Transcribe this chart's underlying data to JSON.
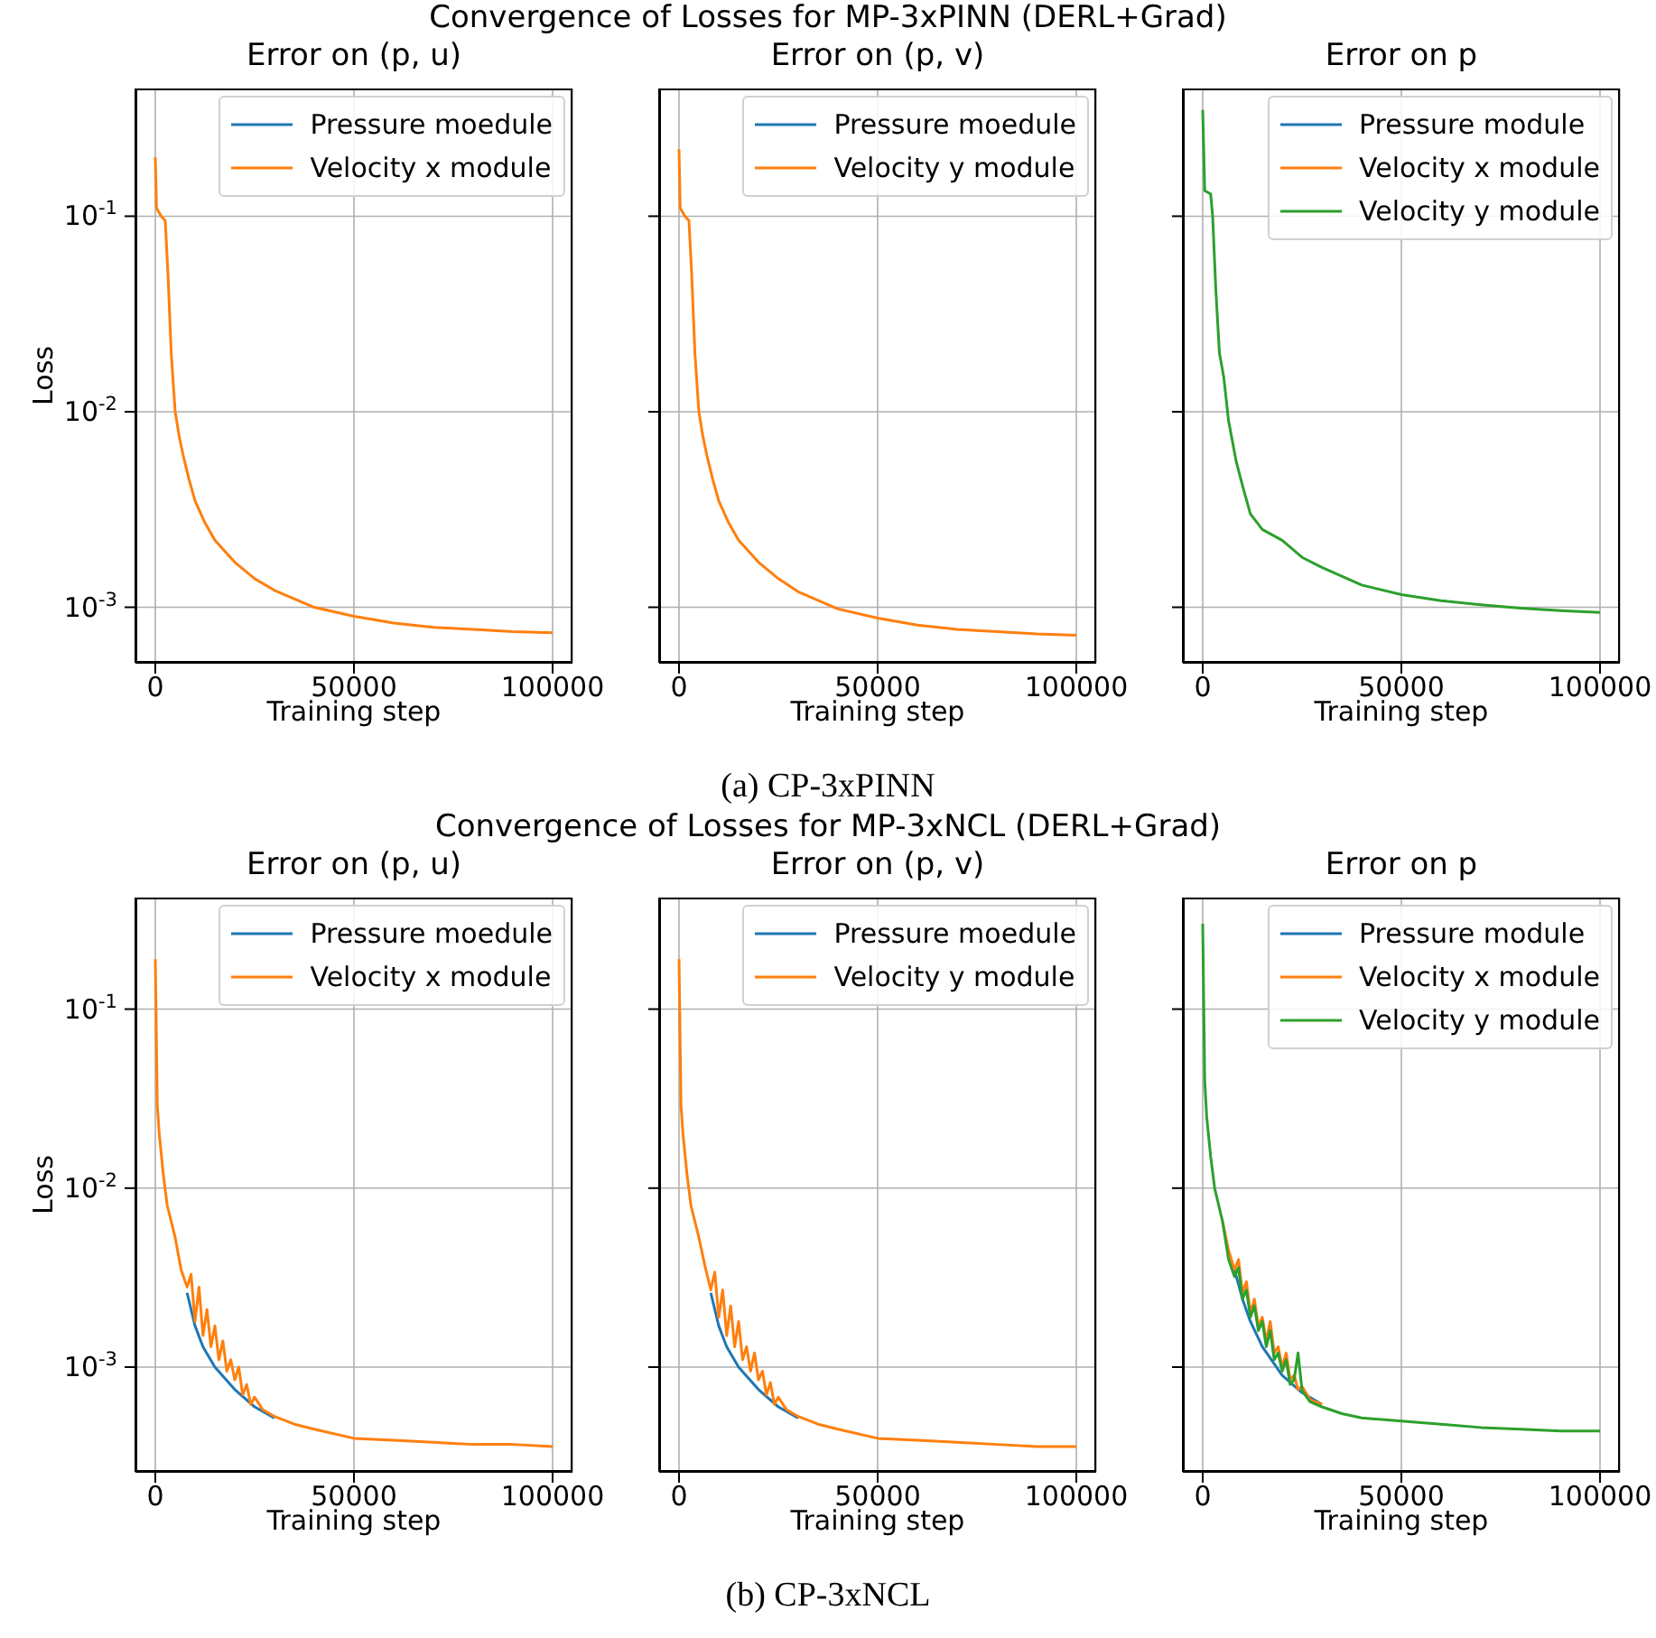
{
  "chart_data": [
    {
      "type": "line",
      "title": "Error on (p, u)",
      "xlabel": "Training step",
      "ylabel": "Loss",
      "annotations": [
        "Convergence of Losses for MP-3xPINN (DERL+Grad)",
        "(a) CP-3xPINN"
      ],
      "log": "y",
      "grid": true,
      "legend": "top right",
      "xlim": [
        -5000,
        105000
      ],
      "xticks": [
        0,
        50000,
        100000
      ],
      "ylim": [
        0.00052,
        0.45
      ],
      "yticks": [
        {
          "value": 0.001,
          "label": "10$^{-3}$"
        },
        {
          "value": 0.01,
          "label": "10$^{-2}$"
        },
        {
          "value": 0.1,
          "label": "10$^{-1}$"
        }
      ],
      "series": [
        {
          "name": "Pressure moedule",
          "color": "#1f77b4"
        },
        {
          "name": "Velocity x module",
          "color": "#ff7f0e",
          "x": [
            0,
            300,
            1500,
            2500,
            3200,
            4000,
            5000,
            6000,
            7000,
            8500,
            10000,
            12500,
            15000,
            20000,
            25000,
            30000,
            40000,
            50000,
            60000,
            70000,
            80000,
            90000,
            100000
          ],
          "values": [
            0.2,
            0.11,
            0.1,
            0.095,
            0.05,
            0.02,
            0.01,
            0.0075,
            0.006,
            0.0045,
            0.0035,
            0.0027,
            0.0022,
            0.0017,
            0.0014,
            0.00122,
            0.001,
            0.0009,
            0.00083,
            0.00079,
            0.00077,
            0.00075,
            0.00074
          ]
        }
      ]
    },
    {
      "type": "line",
      "title": "Error on (p, v)",
      "xlabel": "Training step",
      "log": "y",
      "grid": true,
      "legend": "top right",
      "tick_labels": "x",
      "xlim": [
        -5000,
        105000
      ],
      "xticks": [
        0,
        50000,
        100000
      ],
      "ylim": [
        0.00052,
        0.45
      ],
      "yticks": [
        {
          "value": 0.001,
          "label": null
        },
        {
          "value": 0.01,
          "label": null
        },
        {
          "value": 0.1,
          "label": null
        }
      ],
      "series": [
        {
          "name": "Pressure moedule",
          "color": "#1f77b4"
        },
        {
          "name": "Velocity y module",
          "color": "#ff7f0e",
          "x": [
            0,
            300,
            1500,
            2500,
            3200,
            4000,
            5000,
            6000,
            7000,
            8500,
            10000,
            12500,
            15000,
            20000,
            25000,
            30000,
            40000,
            50000,
            60000,
            70000,
            80000,
            90000,
            100000
          ],
          "values": [
            0.22,
            0.11,
            0.1,
            0.095,
            0.05,
            0.02,
            0.01,
            0.0075,
            0.006,
            0.0045,
            0.0035,
            0.0027,
            0.0022,
            0.0017,
            0.0014,
            0.0012,
            0.00098,
            0.00088,
            0.00081,
            0.00077,
            0.00075,
            0.00073,
            0.00072
          ]
        }
      ]
    },
    {
      "type": "line",
      "title": "Error on p",
      "xlabel": "Training step",
      "log": "y",
      "grid": true,
      "legend": "top right",
      "tick_labels": "x",
      "xlim": [
        -5000,
        105000
      ],
      "xticks": [
        0,
        50000,
        100000
      ],
      "ylim": [
        0.00052,
        0.45
      ],
      "yticks": [
        {
          "value": 0.001,
          "label": null
        },
        {
          "value": 0.01,
          "label": null
        },
        {
          "value": 0.1,
          "label": null
        }
      ],
      "series": [
        {
          "name": "Pressure module",
          "color": "#1f77b4"
        },
        {
          "name": "Velocity x module",
          "color": "#ff7f0e"
        },
        {
          "name": "Velocity y module",
          "color": "#2ca02c",
          "x": [
            0,
            500,
            2000,
            2500,
            3300,
            4200,
            5300,
            6500,
            8400,
            10000,
            12000,
            15000,
            20000,
            25000,
            30000,
            40000,
            50000,
            60000,
            70000,
            80000,
            90000,
            100000
          ],
          "values": [
            0.35,
            0.135,
            0.13,
            0.1,
            0.042,
            0.02,
            0.015,
            0.009,
            0.0056,
            0.0042,
            0.003,
            0.0025,
            0.0022,
            0.0018,
            0.0016,
            0.0013,
            0.00116,
            0.00108,
            0.00103,
            0.00099,
            0.00096,
            0.00094
          ]
        }
      ]
    },
    {
      "type": "line",
      "title": "Error on (p, u)",
      "xlabel": "Training step",
      "ylabel": "Loss",
      "annotations": [
        "Convergence of Losses for MP-3xNCL (DERL+Grad)",
        "(b) CP-3xNCL"
      ],
      "log": "y",
      "grid": true,
      "legend": "top right",
      "xlim": [
        -5000,
        105000
      ],
      "xticks": [
        0,
        50000,
        100000
      ],
      "ylim": [
        0.00026,
        0.42
      ],
      "yticks": [
        {
          "value": 0.001,
          "label": "10$^{-3}$"
        },
        {
          "value": 0.01,
          "label": "10$^{-2}$"
        },
        {
          "value": 0.1,
          "label": "10$^{-1}$"
        }
      ],
      "series": [
        {
          "name": "Pressure moedule",
          "color": "#1f77b4",
          "x": [
            8000,
            10000,
            12000,
            15000,
            20000,
            25000,
            30000
          ],
          "values": [
            0.0026,
            0.0017,
            0.0013,
            0.001,
            0.00075,
            0.0006,
            0.00052
          ]
        },
        {
          "name": "Velocity x module",
          "color": "#ff7f0e",
          "x": [
            0,
            500,
            1000,
            2000,
            3000,
            5000,
            6500,
            8000,
            9000,
            10000,
            11000,
            12000,
            13000,
            14000,
            15000,
            16000,
            17000,
            18000,
            19000,
            20000,
            21000,
            22000,
            23000,
            24000,
            25000,
            27000,
            30000,
            35000,
            40000,
            50000,
            60000,
            70000,
            80000,
            90000,
            100000
          ],
          "values": [
            0.19,
            0.029,
            0.02,
            0.012,
            0.008,
            0.0053,
            0.0035,
            0.0028,
            0.0033,
            0.0018,
            0.0028,
            0.0015,
            0.0021,
            0.0013,
            0.0017,
            0.0011,
            0.0014,
            0.00095,
            0.0011,
            0.00085,
            0.001,
            0.0007,
            0.0008,
            0.00062,
            0.00068,
            0.00058,
            0.00053,
            0.00048,
            0.00045,
            0.0004,
            0.00039,
            0.00038,
            0.00037,
            0.00037,
            0.00036
          ]
        }
      ]
    },
    {
      "type": "line",
      "title": "Error on (p, v)",
      "xlabel": "Training step",
      "log": "y",
      "grid": true,
      "legend": "top right",
      "tick_labels": "x",
      "xlim": [
        -5000,
        105000
      ],
      "xticks": [
        0,
        50000,
        100000
      ],
      "ylim": [
        0.00026,
        0.42
      ],
      "yticks": [
        {
          "value": 0.001,
          "label": null
        },
        {
          "value": 0.01,
          "label": null
        },
        {
          "value": 0.1,
          "label": null
        }
      ],
      "series": [
        {
          "name": "Pressure moedule",
          "color": "#1f77b4",
          "x": [
            8000,
            10000,
            12000,
            15000,
            20000,
            25000,
            30000
          ],
          "values": [
            0.0026,
            0.0017,
            0.0013,
            0.001,
            0.00075,
            0.0006,
            0.00052
          ]
        },
        {
          "name": "Velocity y module",
          "color": "#ff7f0e",
          "x": [
            0,
            500,
            1000,
            2000,
            3000,
            5000,
            6500,
            8000,
            9000,
            10000,
            11000,
            12000,
            13000,
            14000,
            15000,
            16000,
            17000,
            18000,
            19000,
            20000,
            21000,
            22000,
            23000,
            24000,
            25000,
            27000,
            30000,
            35000,
            40000,
            50000,
            60000,
            70000,
            80000,
            90000,
            100000
          ],
          "values": [
            0.19,
            0.029,
            0.02,
            0.012,
            0.008,
            0.0053,
            0.0037,
            0.0027,
            0.0034,
            0.0019,
            0.0027,
            0.0015,
            0.0022,
            0.0013,
            0.0018,
            0.0011,
            0.0013,
            0.00095,
            0.0012,
            0.00085,
            0.00095,
            0.0007,
            0.00082,
            0.00062,
            0.00068,
            0.00058,
            0.00053,
            0.00048,
            0.00045,
            0.0004,
            0.00039,
            0.00038,
            0.00037,
            0.00036,
            0.00036
          ]
        }
      ]
    },
    {
      "type": "line",
      "title": "Error on p",
      "xlabel": "Training step",
      "log": "y",
      "grid": true,
      "legend": "top right",
      "tick_labels": "x",
      "xlim": [
        -5000,
        105000
      ],
      "xticks": [
        0,
        50000,
        100000
      ],
      "ylim": [
        0.00026,
        0.42
      ],
      "yticks": [
        {
          "value": 0.001,
          "label": null
        },
        {
          "value": 0.01,
          "label": null
        },
        {
          "value": 0.1,
          "label": null
        }
      ],
      "series": [
        {
          "name": "Pressure module",
          "color": "#1f77b4",
          "x": [
            8000,
            10000,
            12000,
            15000,
            20000,
            25000,
            30000
          ],
          "values": [
            0.0035,
            0.0024,
            0.0018,
            0.0013,
            0.0009,
            0.00072,
            0.00062
          ]
        },
        {
          "name": "Velocity x module",
          "color": "#ff7f0e",
          "x": [
            5000,
            6500,
            8000,
            9000,
            10000,
            11000,
            12000,
            13000,
            14000,
            15000,
            16000,
            17000,
            18000,
            19000,
            20000,
            21000,
            22000,
            23000,
            24000,
            25000,
            27000,
            30000
          ],
          "values": [
            0.0065,
            0.0045,
            0.0035,
            0.004,
            0.0026,
            0.003,
            0.002,
            0.0024,
            0.0017,
            0.0019,
            0.0014,
            0.0018,
            0.0012,
            0.0013,
            0.001,
            0.0012,
            0.00085,
            0.0009,
            0.00075,
            0.00078,
            0.00066,
            0.00062
          ]
        },
        {
          "name": "Velocity y module",
          "color": "#2ca02c",
          "x": [
            0,
            500,
            1000,
            2000,
            3000,
            5000,
            6500,
            8000,
            9000,
            10000,
            11000,
            12000,
            13000,
            14000,
            15000,
            16000,
            17000,
            18000,
            19000,
            20000,
            21000,
            22000,
            23000,
            24000,
            25000,
            27000,
            30000,
            35000,
            40000,
            50000,
            60000,
            70000,
            80000,
            90000,
            100000
          ],
          "values": [
            0.3,
            0.04,
            0.025,
            0.015,
            0.01,
            0.0065,
            0.004,
            0.0032,
            0.0036,
            0.0024,
            0.0027,
            0.0019,
            0.0022,
            0.0016,
            0.0018,
            0.0013,
            0.0016,
            0.0011,
            0.0012,
            0.00095,
            0.0011,
            0.0008,
            0.00085,
            0.0012,
            0.00074,
            0.00064,
            0.0006,
            0.00055,
            0.00052,
            0.0005,
            0.00048,
            0.00046,
            0.00045,
            0.00044,
            0.00044
          ]
        }
      ]
    }
  ]
}
